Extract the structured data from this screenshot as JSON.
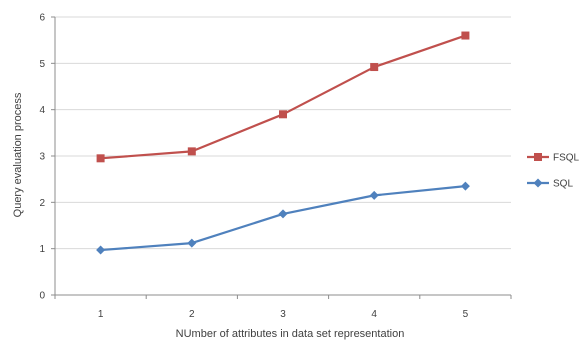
{
  "chart_data": {
    "type": "line",
    "title": "",
    "xlabel": "NUmber of attributes in data set representation",
    "ylabel": "Query evaluation process",
    "categories": [
      "1",
      "2",
      "3",
      "4",
      "5"
    ],
    "ylim": [
      0,
      6
    ],
    "yticks": [
      "0",
      "1",
      "2",
      "3",
      "4",
      "5",
      "6"
    ],
    "grid": true,
    "legend_position": "right",
    "series": [
      {
        "name": "FSQL",
        "values": [
          2.95,
          3.1,
          3.9,
          4.92,
          5.6
        ],
        "color": "#c0504d",
        "marker": "square"
      },
      {
        "name": "SQL",
        "values": [
          0.97,
          1.12,
          1.75,
          2.15,
          2.35
        ],
        "color": "#4f81bd",
        "marker": "diamond"
      }
    ]
  }
}
